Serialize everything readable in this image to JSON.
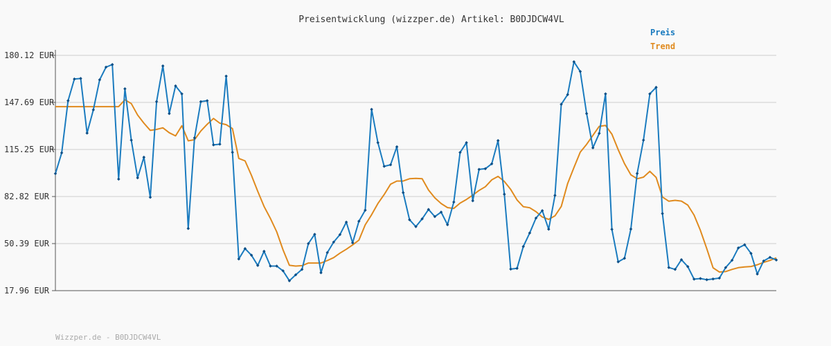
{
  "chart_data": {
    "type": "line",
    "title": "Preisentwicklung (wizzper.de) Artikel: B0DJDCW4VL",
    "footer": "Wizzper.de - B0DJDCW4VL",
    "ylim": [
      17.96,
      180.12
    ],
    "yticks": [
      "180.12 EUR",
      "147.69 EUR",
      "115.25 EUR",
      "82.82 EUR",
      "50.39 EUR",
      "17.96 EUR"
    ],
    "ytick_values": [
      180.12,
      147.69,
      115.25,
      82.82,
      50.39,
      17.96
    ],
    "grid": true,
    "legend_position": "top-right",
    "colors": {
      "preis": "#1a7bbf",
      "trend": "#e08a1e",
      "axis": "#555555",
      "grid": "#e3e3e3",
      "background": "#f9f9f9"
    },
    "series": [
      {
        "name": "Preis",
        "values": [
          98.6,
          112.9,
          148.9,
          163.8,
          164.2,
          126.5,
          142.6,
          163.3,
          172.0,
          173.8,
          94.8,
          157.1,
          121.7,
          95.7,
          109.9,
          82.3,
          148.2,
          172.8,
          140.0,
          159.1,
          153.6,
          60.8,
          123.2,
          148.2,
          148.9,
          118.4,
          118.9,
          165.8,
          113.3,
          39.8,
          46.9,
          42.4,
          35.3,
          45.1,
          34.9,
          34.9,
          31.6,
          24.8,
          28.9,
          32.6,
          50.4,
          56.8,
          30.3,
          44.2,
          51.4,
          56.6,
          65.2,
          50.9,
          65.8,
          73.4,
          142.9,
          120.0,
          103.6,
          104.7,
          117.1,
          85.5,
          66.8,
          62.1,
          67.4,
          73.9,
          69.0,
          72.1,
          63.4,
          79.0,
          113.2,
          120.0,
          79.9,
          101.5,
          102.0,
          105.4,
          121.4,
          84.4,
          32.8,
          33.3,
          48.4,
          57.7,
          68.0,
          73.1,
          60.3,
          83.6,
          146.4,
          153.1,
          175.7,
          169.0,
          140.0,
          116.4,
          126.3,
          153.6,
          60.2,
          37.8,
          40.3,
          60.4,
          98.7,
          121.7,
          153.6,
          158.1,
          71.1,
          33.9,
          32.6,
          39.3,
          34.5,
          25.9,
          26.3,
          25.5,
          26.0,
          26.6,
          33.9,
          38.9,
          47.4,
          49.6,
          43.6,
          29.4,
          38.4,
          40.9,
          39.1
        ]
      },
      {
        "name": "Trend",
        "values": [
          144.8,
          144.8,
          144.8,
          144.8,
          144.8,
          144.8,
          144.8,
          144.8,
          144.8,
          144.8,
          144.8,
          149.5,
          146.9,
          139.0,
          133.4,
          128.4,
          129.1,
          130.2,
          126.8,
          124.6,
          131.6,
          121.2,
          122.0,
          128.0,
          132.6,
          136.6,
          133.4,
          132.4,
          129.6,
          109.1,
          107.4,
          97.4,
          86.4,
          76.0,
          67.7,
          58.5,
          46.1,
          35.4,
          34.9,
          35.2,
          37.0,
          37.0,
          37.0,
          38.7,
          40.7,
          43.8,
          46.5,
          49.5,
          52.8,
          63.3,
          70.3,
          78.0,
          84.2,
          91.3,
          93.5,
          93.5,
          95.1,
          95.3,
          95.1,
          87.3,
          81.9,
          78.0,
          75.2,
          74.6,
          78.3,
          80.8,
          83.8,
          87.0,
          89.6,
          94.3,
          96.7,
          93.2,
          87.7,
          80.5,
          75.8,
          75.1,
          72.4,
          68.7,
          67.1,
          69.5,
          76.0,
          91.8,
          102.8,
          113.4,
          118.8,
          125.0,
          131.2,
          131.8,
          125.8,
          115.1,
          105.5,
          97.8,
          95.1,
          96.2,
          100.2,
          96.0,
          82.5,
          79.6,
          80.2,
          79.7,
          76.9,
          70.0,
          59.5,
          46.9,
          33.7,
          30.8,
          31.1,
          32.6,
          33.8,
          34.3,
          34.6,
          35.8,
          37.4,
          38.8,
          40.6
        ]
      }
    ]
  }
}
